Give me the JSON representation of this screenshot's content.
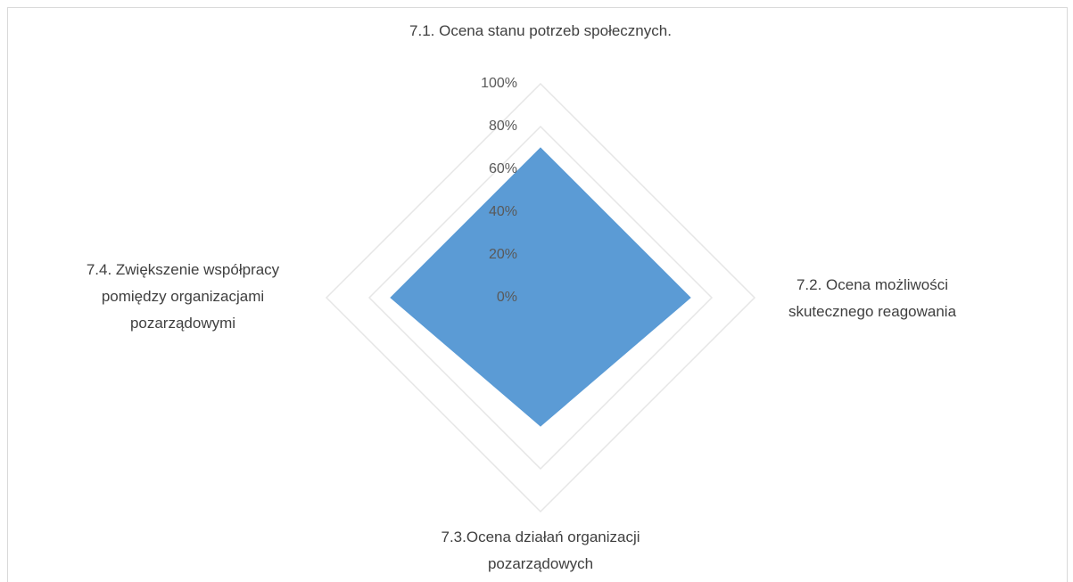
{
  "chart_data": {
    "type": "radar",
    "categories": [
      "7.1. Ocena stanu potrzeb społecznych.",
      "7.2. Ocena możliwości skutecznego reagowania",
      "7.3.Ocena działań organizacji pozarządowych",
      "7.4. Zwiększenie współpracy pomiędzy organizacjami pozarządowymi"
    ],
    "values": [
      70,
      70,
      60,
      70
    ],
    "color": "#5b9bd5",
    "rlim": [
      0,
      100
    ],
    "rticks": [
      {
        "value": 0,
        "label": "0%"
      },
      {
        "value": 20,
        "label": "20%"
      },
      {
        "value": 40,
        "label": "40%"
      },
      {
        "value": 60,
        "label": "60%"
      },
      {
        "value": 80,
        "label": "80%"
      },
      {
        "value": 100,
        "label": "100%"
      }
    ],
    "grid": true
  }
}
